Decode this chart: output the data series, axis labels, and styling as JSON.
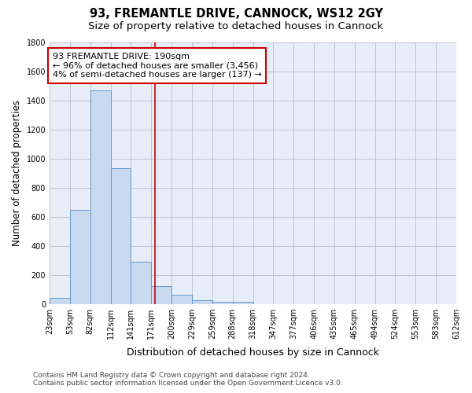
{
  "title": "93, FREMANTLE DRIVE, CANNOCK, WS12 2GY",
  "subtitle": "Size of property relative to detached houses in Cannock",
  "xlabel": "Distribution of detached houses by size in Cannock",
  "ylabel": "Number of detached properties",
  "bin_labels": [
    "23sqm",
    "53sqm",
    "82sqm",
    "112sqm",
    "141sqm",
    "171sqm",
    "200sqm",
    "229sqm",
    "259sqm",
    "288sqm",
    "318sqm",
    "347sqm",
    "377sqm",
    "406sqm",
    "435sqm",
    "465sqm",
    "494sqm",
    "524sqm",
    "553sqm",
    "583sqm",
    "612sqm"
  ],
  "bar_heights": [
    40,
    650,
    1470,
    935,
    290,
    125,
    65,
    25,
    15,
    15,
    0,
    0,
    0,
    0,
    0,
    0,
    0,
    0,
    0,
    0
  ],
  "bar_color": "#c8d9f0",
  "bar_edge_color": "#6699cc",
  "grid_color": "#bbbbcc",
  "background_color": "#e8eef8",
  "vline_x": 5.17,
  "vline_color": "#cc0000",
  "ylim": [
    0,
    1800
  ],
  "yticks": [
    0,
    200,
    400,
    600,
    800,
    1000,
    1200,
    1400,
    1600,
    1800
  ],
  "annotation_text": "93 FREMANTLE DRIVE: 190sqm\n← 96% of detached houses are smaller (3,456)\n4% of semi-detached houses are larger (137) →",
  "annotation_box_color": "#cc0000",
  "footer_line1": "Contains HM Land Registry data © Crown copyright and database right 2024.",
  "footer_line2": "Contains public sector information licensed under the Open Government Licence v3.0.",
  "title_fontsize": 10.5,
  "subtitle_fontsize": 9.5,
  "tick_fontsize": 7,
  "ylabel_fontsize": 8.5,
  "xlabel_fontsize": 9,
  "annotation_fontsize": 8,
  "footer_fontsize": 6.5
}
